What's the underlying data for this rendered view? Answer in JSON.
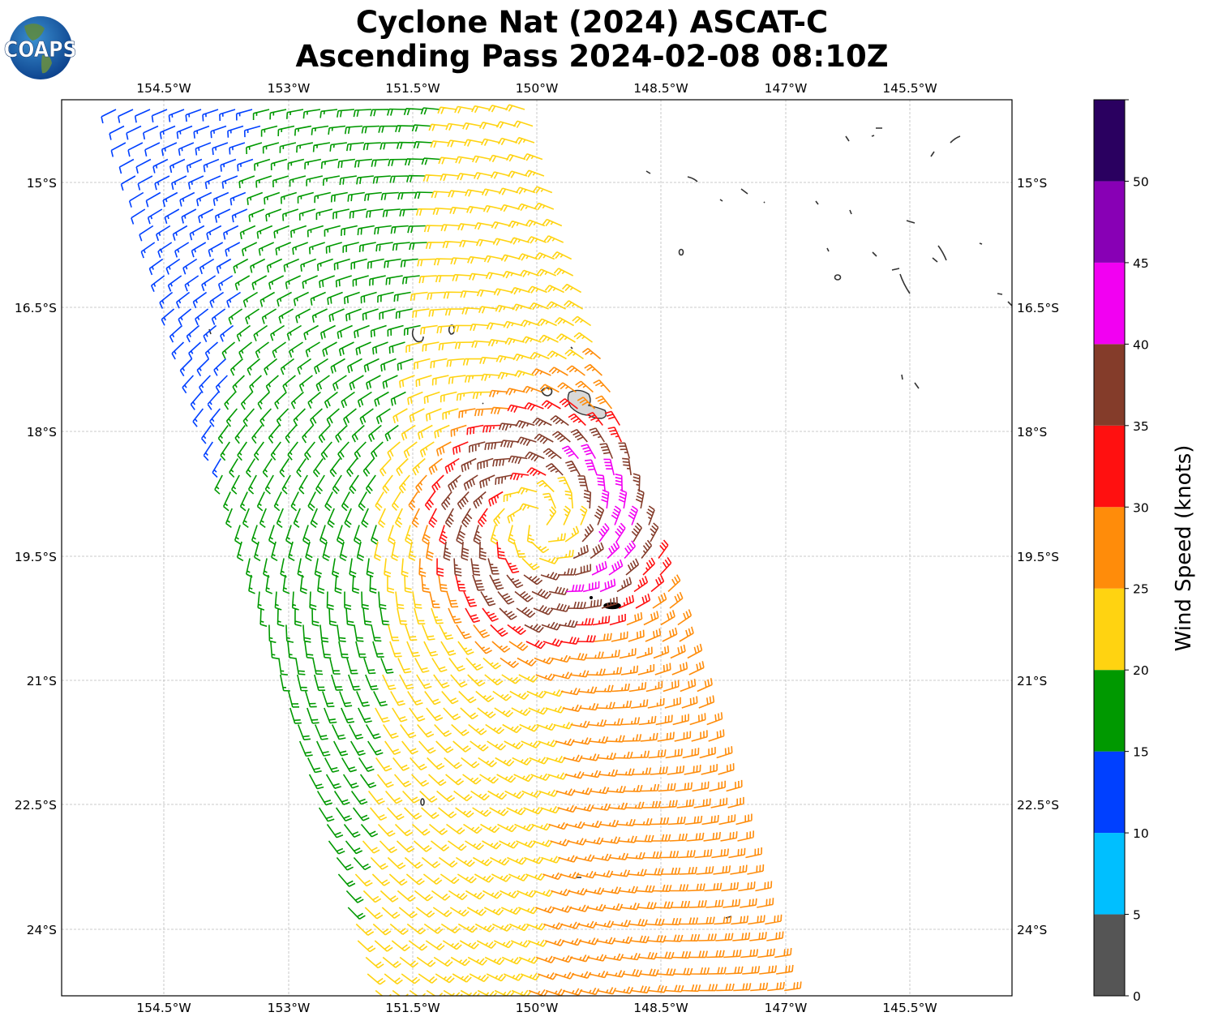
{
  "logo": {
    "text": "COAPS"
  },
  "title": {
    "line1": "Cyclone Nat (2024) ASCAT-C",
    "line2": "Ascending Pass 2024-02-08 08:10Z"
  },
  "map": {
    "lon_ticks": [
      "154.5°W",
      "153°W",
      "151.5°W",
      "150°W",
      "148.5°W",
      "147°W",
      "145.5°W"
    ],
    "lat_ticks": [
      "15°S",
      "16.5°S",
      "18°S",
      "19.5°S",
      "21°S",
      "22.5°S",
      "24°S"
    ]
  },
  "colorbar": {
    "label": "Wind Speed (knots)",
    "tick_labels": [
      "0",
      "5",
      "10",
      "15",
      "20",
      "25",
      "30",
      "35",
      "40",
      "45",
      "50"
    ],
    "bins": [
      {
        "min": 0,
        "max": 5,
        "color": "#555555"
      },
      {
        "min": 5,
        "max": 10,
        "color": "#00bfff"
      },
      {
        "min": 10,
        "max": 15,
        "color": "#0040ff"
      },
      {
        "min": 15,
        "max": 20,
        "color": "#009900"
      },
      {
        "min": 20,
        "max": 25,
        "color": "#ffd311"
      },
      {
        "min": 25,
        "max": 30,
        "color": "#ff8c0a"
      },
      {
        "min": 30,
        "max": 35,
        "color": "#ff1010"
      },
      {
        "min": 35,
        "max": 40,
        "color": "#843c2a"
      },
      {
        "min": 40,
        "max": 45,
        "color": "#f200f2"
      },
      {
        "min": 45,
        "max": 50,
        "color": "#8800b5"
      },
      {
        "min": 50,
        "max": 55,
        "color": "#2a0060"
      }
    ]
  }
}
